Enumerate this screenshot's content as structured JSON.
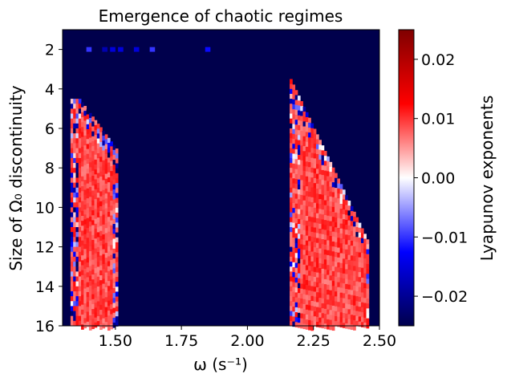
{
  "chart_data": {
    "type": "heatmap",
    "title": "Emergence of chaotic regimes",
    "xlabel": "ω (s⁻¹)",
    "ylabel": "Size of Ω₀ discontinuity",
    "xlim": [
      1.3,
      2.5
    ],
    "ylim": [
      16,
      1
    ],
    "y_inverted": true,
    "x_ticks": [
      "1.50",
      "1.75",
      "2.00",
      "2.25",
      "2.50"
    ],
    "x_tick_values": [
      1.5,
      1.75,
      2.0,
      2.25,
      2.5
    ],
    "y_ticks": [
      "2",
      "4",
      "6",
      "8",
      "10",
      "12",
      "14",
      "16"
    ],
    "y_tick_values": [
      2,
      4,
      6,
      8,
      10,
      12,
      14,
      16
    ],
    "grid": false,
    "background_value": -0.025,
    "colormap": "seismic",
    "colorbar": {
      "label": "Lyapunov exponents",
      "range": [
        -0.025,
        0.025
      ],
      "ticks": [
        "−0.02",
        "−0.01",
        "0.00",
        "0.01",
        "0.02"
      ],
      "tick_values": [
        -0.02,
        -0.01,
        0.0,
        0.01,
        0.02
      ],
      "colors": [
        "#00004c",
        "#0000ff",
        "#ffffff",
        "#ff0000",
        "#7f0000"
      ]
    },
    "regions": [
      {
        "x_range": [
          1.33,
          1.51
        ],
        "y_range": [
          4.5,
          16
        ],
        "value_range": [
          0.006,
          0.012
        ],
        "description_ref": "left chaotic band"
      },
      {
        "x_range": [
          2.16,
          2.46
        ],
        "y_range": [
          3.5,
          16
        ],
        "value_range": [
          0.006,
          0.012
        ],
        "description_ref": "right chaotic band"
      }
    ],
    "sparse_row": {
      "y": 2,
      "x_range": [
        1.33,
        2.05
      ],
      "values": [
        -0.012,
        -0.015,
        -0.018,
        -0.01
      ]
    }
  }
}
